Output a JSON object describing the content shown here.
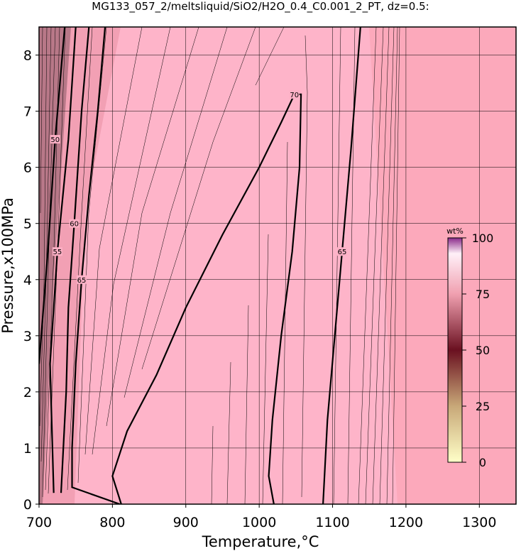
{
  "chart_data": {
    "type": "contour",
    "title": "MG133_057_2/meltsliquid/SiO2/H2O_0.4_C0.001_2_PT, dz=0.5:",
    "xlabel": "Temperature,°C",
    "ylabel": "Pressure,x100MPa",
    "xlim": [
      700,
      1350
    ],
    "ylim": [
      0,
      8.5
    ],
    "xticks": [
      700,
      800,
      900,
      1000,
      1100,
      1200,
      1300
    ],
    "yticks": [
      0,
      1,
      2,
      3,
      4,
      5,
      6,
      7,
      8
    ],
    "grid": true,
    "colorbar": {
      "label": "wt%",
      "clim": [
        0,
        100
      ],
      "ticks": [
        0,
        25,
        50,
        75,
        100
      ]
    },
    "contours": [
      {
        "level": 70,
        "x": [
          812,
          800,
          820,
          860,
          900,
          950,
          1000,
          1030,
          1048,
          1057,
          1055,
          1045,
          1030,
          1018,
          1013,
          1020
        ],
        "y": [
          0,
          0.5,
          1.3,
          2.3,
          3.5,
          4.8,
          6.0,
          6.8,
          7.3,
          7.3,
          6.0,
          4.5,
          3.0,
          1.5,
          0.5,
          0
        ]
      },
      {
        "level": 65,
        "x": [
          1087,
          1093,
          1103,
          1113,
          1125,
          1138
        ],
        "y": [
          0,
          1.5,
          3.0,
          4.5,
          6.3,
          8.5
        ]
      },
      {
        "level": 65,
        "x": [
          810,
          745,
          745,
          750,
          758,
          768,
          780,
          790
        ],
        "y": [
          0,
          0.3,
          1.0,
          2.5,
          4.0,
          5.5,
          7.0,
          8.5
        ]
      },
      {
        "level": 60,
        "x": [
          730,
          737,
          740,
          748,
          758,
          768
        ],
        "y": [
          0.2,
          2.0,
          3.5,
          5.0,
          7.0,
          8.5
        ]
      },
      {
        "level": 55,
        "x": [
          720,
          715,
          725,
          740,
          750
        ],
        "y": [
          0.2,
          2.5,
          4.5,
          6.5,
          8.5
        ]
      },
      {
        "level": 50,
        "x": [
          700,
          712,
          722,
          735
        ],
        "y": [
          2.5,
          4.5,
          6.5,
          8.5
        ]
      }
    ]
  }
}
